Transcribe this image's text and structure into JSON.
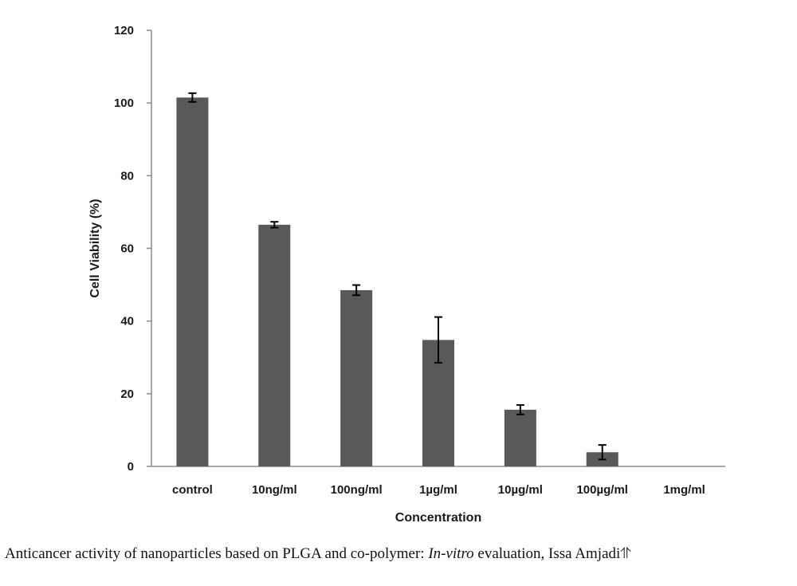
{
  "chart_data": {
    "type": "bar",
    "categories": [
      "control",
      "10ng/ml",
      "100ng/ml",
      "1µg/ml",
      "10µg/ml",
      "100µg/ml",
      "1mg/ml"
    ],
    "values": [
      101.5,
      66.5,
      48.5,
      34.8,
      15.6,
      3.9,
      0
    ],
    "errors": [
      1.2,
      0.8,
      1.4,
      6.3,
      1.3,
      2.0,
      0
    ],
    "xlabel": "Concentration",
    "ylabel": "Cell Viability (%)",
    "ylim": [
      0,
      120
    ],
    "yticks": [
      0,
      20,
      40,
      60,
      80,
      100,
      120
    ],
    "grid": false,
    "legend": "none",
    "colors": {
      "bar": "#595959",
      "axis": "#8c8c8c",
      "error": "#000000"
    }
  },
  "caption": {
    "part1": "Anticancer activity of nanoparticles based on PLGA and co-polymer: ",
    "italic": "In-vitro",
    "part2": " evaluation, Issa Amjadi",
    "symbol": "⥣"
  }
}
